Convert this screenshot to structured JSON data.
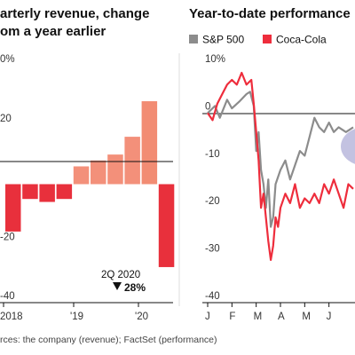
{
  "left_chart": {
    "title_line1": "arterly revenue, change",
    "title_line2": "om a year earlier"
  },
  "right_chart": {
    "title": "Year-to-date performance"
  },
  "source": "rces: the company (revenue); FactSet (performance)",
  "annotation": {
    "label": "2Q 2020",
    "value": "28%",
    "arrow": "down-triangle-icon"
  },
  "colors": {
    "positive_bar": "#f3907a",
    "positive_bar_latest": "#f28c73",
    "negative_bar": "#e8303c",
    "coke": "#ee2d3c",
    "sp500": "#8c8c8c",
    "highlight": "#b9b7dc"
  },
  "chart_data": [
    {
      "type": "bar",
      "title": "arterly revenue, change / om a year earlier",
      "categories": [
        "2018Q1",
        "2018Q2",
        "2018Q3",
        "2018Q4",
        "2019Q1",
        "2019Q2",
        "2019Q3",
        "2019Q4",
        "2020Q1",
        "2020Q2"
      ],
      "values": [
        -16,
        -5,
        -6,
        -5,
        6,
        8,
        10,
        16,
        28,
        -28
      ],
      "x_tick_labels": [
        "2018",
        "'19",
        "'20"
      ],
      "y_tick_labels": [
        "0%",
        "20",
        "",
        "-20",
        "-40"
      ],
      "ylim": [
        -40,
        40
      ],
      "grid": false
    },
    {
      "type": "line",
      "title": "Year-to-date performance",
      "x_tick_labels": [
        "J",
        "F",
        "M",
        "A",
        "M",
        "J"
      ],
      "y_tick_labels": [
        "10%",
        "0",
        "-10",
        "-20",
        "-30",
        "-40"
      ],
      "ylim": [
        -40,
        10
      ],
      "xlim": [
        0,
        6
      ],
      "legend": "top",
      "series": [
        {
          "name": "S&P 500",
          "points": [
            [
              0,
              0
            ],
            [
              0.3,
              1.5
            ],
            [
              0.5,
              -1
            ],
            [
              0.8,
              2.8
            ],
            [
              1.0,
              1.0
            ],
            [
              1.3,
              2.4
            ],
            [
              1.6,
              4.0
            ],
            [
              1.75,
              4.5
            ],
            [
              1.9,
              1.5
            ],
            [
              2.0,
              -8
            ],
            [
              2.1,
              -4
            ],
            [
              2.2,
              -12
            ],
            [
              2.3,
              -15
            ],
            [
              2.4,
              -20
            ],
            [
              2.5,
              -14
            ],
            [
              2.6,
              -24
            ],
            [
              2.7,
              -22
            ],
            [
              2.8,
              -15
            ],
            [
              3.0,
              -12
            ],
            [
              3.2,
              -10
            ],
            [
              3.4,
              -14
            ],
            [
              3.6,
              -11
            ],
            [
              3.8,
              -8
            ],
            [
              4.0,
              -9
            ],
            [
              4.2,
              -5
            ],
            [
              4.4,
              -1
            ],
            [
              4.6,
              -3
            ],
            [
              4.8,
              -4
            ],
            [
              5.0,
              -2
            ],
            [
              5.2,
              -4
            ],
            [
              5.4,
              -3
            ],
            [
              5.7,
              -4
            ],
            [
              6.0,
              -3
            ]
          ]
        },
        {
          "name": "Coca-Cola",
          "points": [
            [
              0,
              0
            ],
            [
              0.2,
              -1.5
            ],
            [
              0.4,
              2
            ],
            [
              0.6,
              4
            ],
            [
              0.8,
              6
            ],
            [
              1.0,
              7
            ],
            [
              1.2,
              6
            ],
            [
              1.4,
              8.5
            ],
            [
              1.6,
              6
            ],
            [
              1.8,
              7
            ],
            [
              1.9,
              2
            ],
            [
              2.0,
              -4
            ],
            [
              2.1,
              -10
            ],
            [
              2.2,
              -20
            ],
            [
              2.3,
              -17
            ],
            [
              2.4,
              -22
            ],
            [
              2.5,
              -27
            ],
            [
              2.6,
              -31
            ],
            [
              2.7,
              -28
            ],
            [
              2.8,
              -22
            ],
            [
              2.9,
              -24
            ],
            [
              3.0,
              -20
            ],
            [
              3.2,
              -17
            ],
            [
              3.4,
              -19
            ],
            [
              3.6,
              -15
            ],
            [
              3.8,
              -20
            ],
            [
              4.0,
              -18
            ],
            [
              4.2,
              -19
            ],
            [
              4.4,
              -17
            ],
            [
              4.6,
              -19
            ],
            [
              4.8,
              -15
            ],
            [
              5.0,
              -17
            ],
            [
              5.2,
              -14
            ],
            [
              5.4,
              -17
            ],
            [
              5.6,
              -20
            ],
            [
              5.8,
              -15
            ],
            [
              6.0,
              -16
            ]
          ]
        }
      ]
    }
  ]
}
